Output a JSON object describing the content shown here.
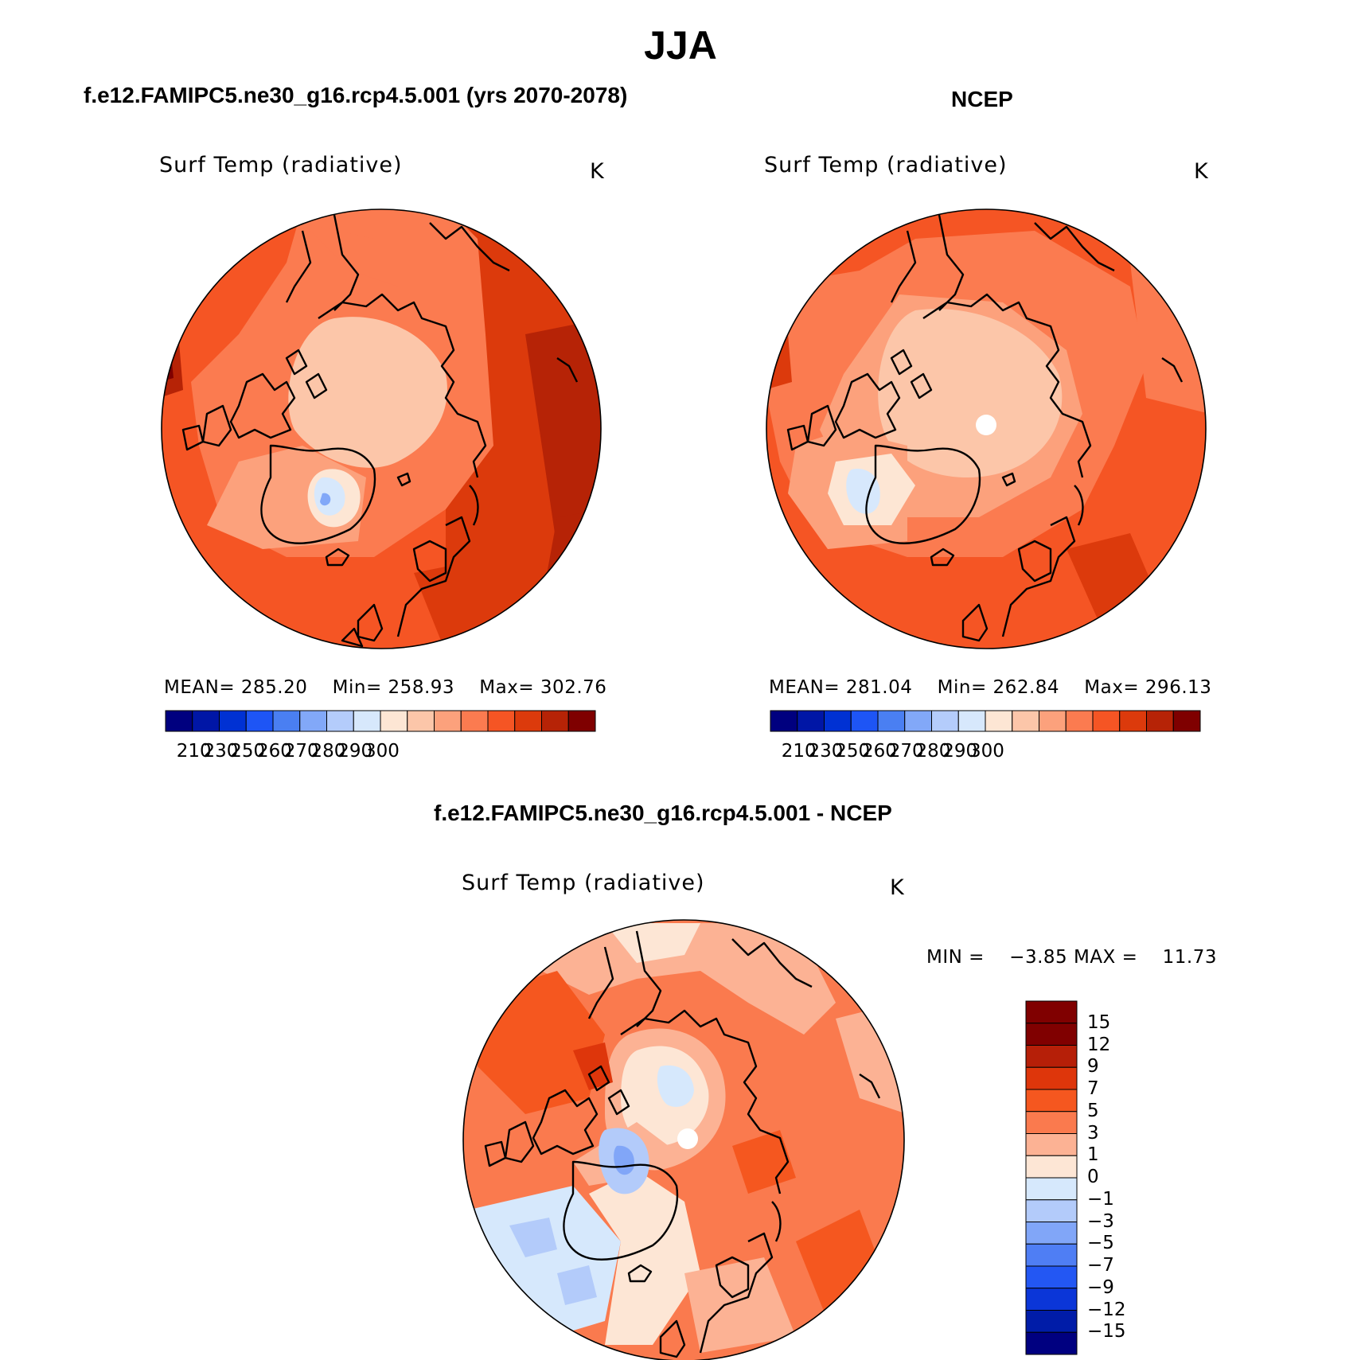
{
  "title": "JJA",
  "panels": [
    {
      "case_title": "f.e12.FAMIPC5.ne30_g16.rcp4.5.001 (yrs 2070-2078)",
      "variable": "Surf Temp (radiative)",
      "units": "K",
      "stats": {
        "mean_label": "MEAN=",
        "mean": "285.20",
        "min_label": "Min=",
        "min": "258.93",
        "max_label": "Max=",
        "max": "302.76"
      },
      "colorbar_ticks": [
        "210",
        "230",
        "250",
        "260",
        "270",
        "280",
        "290",
        "300"
      ]
    },
    {
      "case_title": "NCEP",
      "variable": "Surf Temp (radiative)",
      "units": "K",
      "stats": {
        "mean_label": "MEAN=",
        "mean": "281.04",
        "min_label": "Min=",
        "min": "262.84",
        "max_label": "Max=",
        "max": "296.13"
      },
      "colorbar_ticks": [
        "210",
        "230",
        "250",
        "260",
        "270",
        "280",
        "290",
        "300"
      ]
    }
  ],
  "difference": {
    "case_title": "f.e12.FAMIPC5.ne30_g16.rcp4.5.001 - NCEP",
    "variable": "Surf Temp (radiative)",
    "units": "K",
    "stats": {
      "min_label": "MIN =",
      "min": "−3.85",
      "max_label": "MAX =",
      "max": "11.73"
    },
    "colorbar_ticks": [
      "15",
      "12",
      "9",
      "7",
      "5",
      "3",
      "1",
      "0",
      "−1",
      "−3",
      "−5",
      "−7",
      "−9",
      "−12",
      "−15"
    ]
  },
  "colors": {
    "abs_scale": [
      "#00007f",
      "#0016a6",
      "#0031d3",
      "#1e55f5",
      "#4a7ff2",
      "#82a8f8",
      "#b4ccfb",
      "#d7e8fc",
      "#fde6d4",
      "#fcc6a9",
      "#fca17c",
      "#fb7b50",
      "#f55524",
      "#dc3a0c",
      "#b62306",
      "#7f0000"
    ],
    "diff_scale": [
      "#800000",
      "#b61f08",
      "#de360b",
      "#f5571f",
      "#fa7a4e",
      "#fcb294",
      "#fde6d5",
      "#d6e8fc",
      "#b3cbfa",
      "#81a6f8",
      "#4f7ef4",
      "#2357f3",
      "#0b36d8",
      "#001ca8",
      "#000080"
    ]
  }
}
